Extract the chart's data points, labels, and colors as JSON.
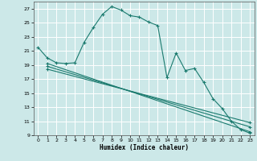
{
  "xlabel": "Humidex (Indice chaleur)",
  "bg_color": "#cce8e8",
  "grid_color": "#ffffff",
  "line_color": "#1a7a6e",
  "xlim": [
    -0.5,
    23.5
  ],
  "ylim": [
    9,
    28
  ],
  "yticks": [
    9,
    11,
    13,
    15,
    17,
    19,
    21,
    23,
    25,
    27
  ],
  "xticks": [
    0,
    1,
    2,
    3,
    4,
    5,
    6,
    7,
    8,
    9,
    10,
    11,
    12,
    13,
    14,
    15,
    16,
    17,
    18,
    19,
    20,
    21,
    22,
    23
  ],
  "series1_x": [
    0,
    1,
    2,
    3,
    4,
    5,
    6,
    7,
    8,
    9,
    10,
    11,
    12,
    13,
    14,
    15,
    16,
    17,
    18,
    19,
    20,
    21,
    22,
    23
  ],
  "series1_y": [
    21.5,
    20.0,
    19.3,
    19.2,
    19.3,
    22.2,
    24.3,
    26.2,
    27.3,
    26.8,
    26.0,
    25.8,
    25.1,
    24.6,
    17.2,
    20.7,
    18.2,
    18.5,
    16.5,
    14.2,
    12.8,
    11.0,
    9.8,
    9.3
  ],
  "series2_x": [
    1,
    23
  ],
  "series2_y": [
    19.2,
    9.5
  ],
  "series3_x": [
    1,
    23
  ],
  "series3_y": [
    18.8,
    10.2
  ],
  "series4_x": [
    1,
    23
  ],
  "series4_y": [
    18.4,
    10.8
  ]
}
